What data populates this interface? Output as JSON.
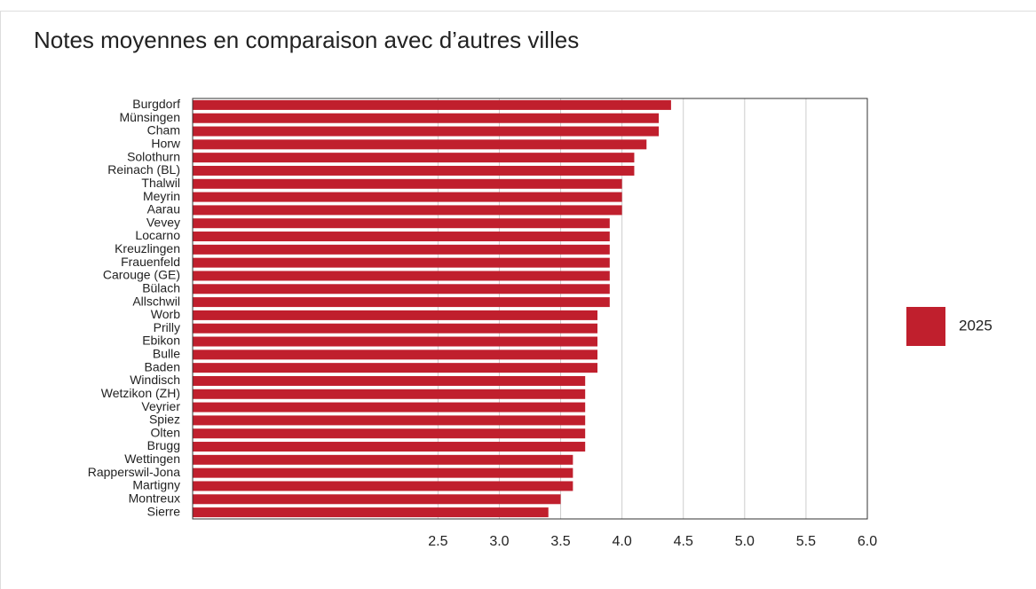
{
  "chart_data": {
    "type": "bar",
    "orientation": "horizontal",
    "title": "Notes moyennes en comparaison avec d’autres villes",
    "categories": [
      "Burgdorf",
      "Münsingen",
      "Cham",
      "Horw",
      "Solothurn",
      "Reinach (BL)",
      "Thalwil",
      "Meyrin",
      "Aarau",
      "Vevey",
      "Locarno",
      "Kreuzlingen",
      "Frauenfeld",
      "Carouge (GE)",
      "Bülach",
      "Allschwil",
      "Worb",
      "Prilly",
      "Ebikon",
      "Bulle",
      "Baden",
      "Windisch",
      "Wetzikon (ZH)",
      "Veyrier",
      "Spiez",
      "Olten",
      "Brugg",
      "Wettingen",
      "Rapperswil-Jona",
      "Martigny",
      "Montreux",
      "Sierre"
    ],
    "series": [
      {
        "name": "2025",
        "color": "#c01f2d",
        "values": [
          4.4,
          4.3,
          4.3,
          4.2,
          4.1,
          4.1,
          4.0,
          4.0,
          4.0,
          3.9,
          3.9,
          3.9,
          3.9,
          3.9,
          3.9,
          3.9,
          3.8,
          3.8,
          3.8,
          3.8,
          3.8,
          3.7,
          3.7,
          3.7,
          3.7,
          3.7,
          3.7,
          3.6,
          3.6,
          3.6,
          3.5,
          3.4
        ]
      }
    ],
    "xlim": [
      0.5,
      6.0
    ],
    "xticks": [
      2.5,
      {
        "value": 3,
        "label": "3.0"
      },
      3.5,
      {
        "value": 4,
        "label": "4.0"
      },
      4.5,
      {
        "value": 5,
        "label": "5.0"
      },
      5.5,
      {
        "value": 6,
        "label": "6.0"
      }
    ],
    "grid": true,
    "legend": "right"
  }
}
